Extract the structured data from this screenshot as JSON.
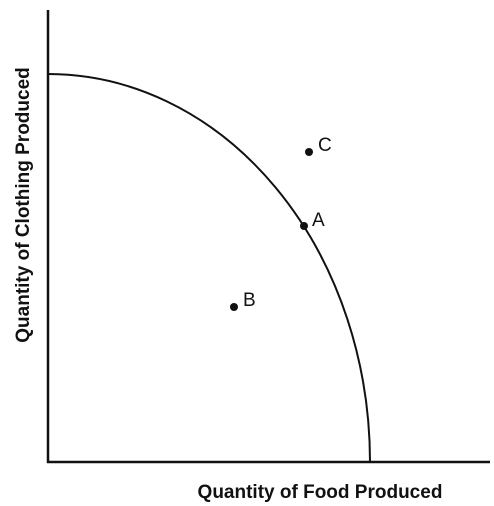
{
  "axes": {
    "x_label": "Quantity of Food Produced",
    "y_label": "Quantity of Clothing Produced"
  },
  "points": [
    {
      "label": "A"
    },
    {
      "label": "B"
    },
    {
      "label": "C"
    }
  ]
}
